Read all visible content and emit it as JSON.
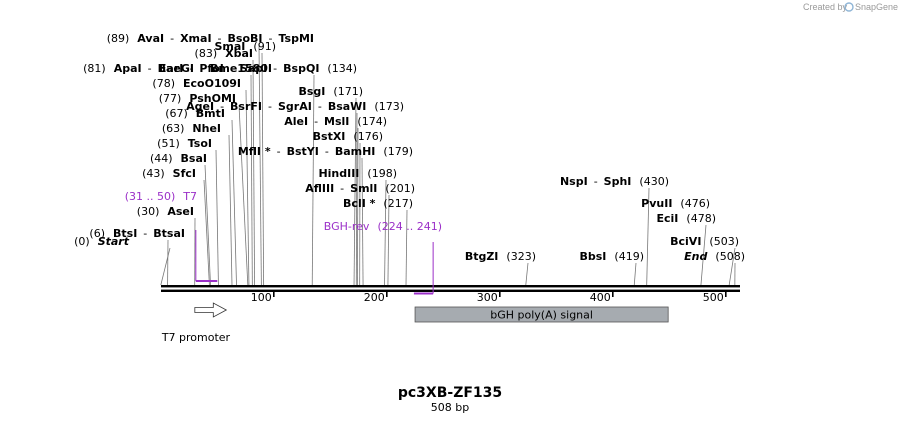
{
  "credit": {
    "prefix": "Created by",
    "brand": "SnapGene"
  },
  "plasmid": {
    "name": "pc3XB-ZF135",
    "length_label": "508 bp"
  },
  "axis": {
    "start_bp": 1,
    "end_bp": 508,
    "ticks": [
      100,
      200,
      300,
      400,
      500
    ]
  },
  "rows": [
    {
      "pos": 89,
      "parts": [
        {
          "t": "(89)"
        },
        {
          "t": "AvaI",
          "b": 1
        },
        {
          "t": "-"
        },
        {
          "t": "XmaI",
          "b": 1
        },
        {
          "t": "-"
        },
        {
          "t": "BsoBI",
          "b": 1
        },
        {
          "t": "-"
        },
        {
          "t": "TspMI",
          "b": 1
        }
      ]
    },
    {
      "pos": 91,
      "parts": [
        {
          "t": "SmaI",
          "b": 1
        },
        {
          "t": "(91)"
        }
      ]
    },
    {
      "pos": 83,
      "parts": [
        {
          "t": "(83)"
        },
        {
          "t": "XbaI",
          "b": 1
        }
      ]
    },
    {
      "pos": 81,
      "parts": [
        {
          "t": "(81)"
        },
        {
          "t": "ApaI",
          "b": 1
        },
        {
          "t": "-"
        },
        {
          "t": "BaeGI",
          "b": 1
        },
        {
          "t": "-"
        },
        {
          "t": "Bme1580I",
          "b": 1
        }
      ]
    },
    {
      "pos": 134,
      "parts": [
        {
          "t": "EarI",
          "b": 1
        },
        {
          "t": "-"
        },
        {
          "t": "PfoI",
          "b": 1
        },
        {
          "t": "-"
        },
        {
          "t": "SapI",
          "b": 1
        },
        {
          "t": "-"
        },
        {
          "t": "BspQI",
          "b": 1
        },
        {
          "t": "(134)"
        }
      ]
    },
    {
      "pos": 78,
      "parts": [
        {
          "t": "(78)"
        },
        {
          "t": "EcoO109I",
          "b": 1
        }
      ]
    },
    {
      "pos": 171,
      "parts": [
        {
          "t": "BsgI",
          "b": 1
        },
        {
          "t": "(171)"
        }
      ]
    },
    {
      "pos": 77,
      "parts": [
        {
          "t": "(77)"
        },
        {
          "t": "PshOMI",
          "b": 1
        }
      ]
    },
    {
      "pos": 173,
      "parts": [
        {
          "t": "AgeI",
          "b": 1
        },
        {
          "t": "-"
        },
        {
          "t": "BsrFI",
          "b": 1
        },
        {
          "t": "-"
        },
        {
          "t": "SgrAI",
          "b": 1
        },
        {
          "t": "-"
        },
        {
          "t": "BsaWI",
          "b": 1
        },
        {
          "t": "(173)"
        }
      ]
    },
    {
      "pos": 67,
      "parts": [
        {
          "t": "(67)"
        },
        {
          "t": "BmtI",
          "b": 1
        }
      ]
    },
    {
      "pos": 174,
      "parts": [
        {
          "t": "AleI",
          "b": 1
        },
        {
          "t": "-"
        },
        {
          "t": "MslI",
          "b": 1
        },
        {
          "t": "(174)"
        }
      ]
    },
    {
      "pos": 63,
      "parts": [
        {
          "t": "(63)"
        },
        {
          "t": "NheI",
          "b": 1
        }
      ]
    },
    {
      "pos": 176,
      "parts": [
        {
          "t": "BstXI",
          "b": 1
        },
        {
          "t": "(176)"
        }
      ]
    },
    {
      "pos": 51,
      "parts": [
        {
          "t": "(51)"
        },
        {
          "t": "TsoI",
          "b": 1
        }
      ]
    },
    {
      "pos": 179,
      "parts": [
        {
          "t": "MflI *",
          "b": 1
        },
        {
          "t": "-"
        },
        {
          "t": "BstYI",
          "b": 1
        },
        {
          "t": "-"
        },
        {
          "t": "BamHI",
          "b": 1
        },
        {
          "t": "(179)"
        }
      ]
    },
    {
      "pos": 44,
      "parts": [
        {
          "t": "(44)"
        },
        {
          "t": "BsaI",
          "b": 1
        }
      ]
    },
    {
      "pos": 198,
      "parts": [
        {
          "t": "HindIII",
          "b": 1
        },
        {
          "t": "(198)"
        }
      ]
    },
    {
      "pos": 43,
      "parts": [
        {
          "t": "(43)"
        },
        {
          "t": "SfcI",
          "b": 1
        }
      ]
    },
    {
      "pos": 430,
      "parts": [
        {
          "t": "NspI",
          "b": 1
        },
        {
          "t": "-"
        },
        {
          "t": "SphI",
          "b": 1
        },
        {
          "t": "(430)"
        }
      ]
    },
    {
      "pos": 201,
      "parts": [
        {
          "t": "AflIII",
          "b": 1
        },
        {
          "t": "-"
        },
        {
          "t": "SmlI",
          "b": 1
        },
        {
          "t": "(201)"
        }
      ]
    },
    {
      "pos": 31,
      "parts": [
        {
          "t": "(31 .. 50)",
          "p": 1
        },
        {
          "t": "T7",
          "p": 1
        }
      ]
    },
    {
      "pos": 476,
      "parts": [
        {
          "t": "PvuII",
          "b": 1
        },
        {
          "t": "(476)"
        }
      ]
    },
    {
      "pos": 217,
      "parts": [
        {
          "t": "BclI *",
          "b": 1
        },
        {
          "t": "(217)"
        }
      ]
    },
    {
      "pos": 30,
      "parts": [
        {
          "t": "(30)"
        },
        {
          "t": "AseI",
          "b": 1
        }
      ]
    },
    {
      "pos": 478,
      "parts": [
        {
          "t": "EciI",
          "b": 1
        },
        {
          "t": "(478)"
        }
      ]
    },
    {
      "pos": 224,
      "parts": [
        {
          "t": "BGH-rev",
          "p": 1
        },
        {
          "t": "(224 .. 241)",
          "p": 1
        }
      ]
    },
    {
      "pos": 6,
      "parts": [
        {
          "t": "(6)"
        },
        {
          "t": "BtsI",
          "b": 1
        },
        {
          "t": "-"
        },
        {
          "t": "BtsaI",
          "b": 1
        }
      ]
    },
    {
      "pos": 503,
      "parts": [
        {
          "t": "BciVI",
          "b": 1
        },
        {
          "t": "(503)"
        }
      ]
    },
    {
      "pos": 0,
      "parts": [
        {
          "t": "(0)"
        },
        {
          "t": "Start",
          "b": 1,
          "i": 1
        }
      ]
    },
    {
      "pos": 323,
      "parts": [
        {
          "t": "BtgZI",
          "b": 1
        },
        {
          "t": "(323)"
        }
      ]
    },
    {
      "pos": 419,
      "parts": [
        {
          "t": "BbsI",
          "b": 1
        },
        {
          "t": "(419)"
        }
      ]
    },
    {
      "pos": 508,
      "parts": [
        {
          "t": "End",
          "b": 1,
          "i": 1
        },
        {
          "t": "(508)"
        }
      ]
    }
  ],
  "features": [
    {
      "name": "T7 promoter",
      "start": 31,
      "end": 50,
      "strand": "forward",
      "color": "#ffffff"
    },
    {
      "name": "bGH poly(A) signal",
      "start": 225,
      "end": 449,
      "strand": "none",
      "color": "#a6abb0"
    }
  ],
  "primers": [
    {
      "name": "T7",
      "start": 31,
      "end": 50,
      "strand": "forward",
      "color": "#9b30c8"
    },
    {
      "name": "BGH-rev",
      "start": 224,
      "end": 241,
      "strand": "reverse",
      "color": "#9b30c8"
    }
  ]
}
